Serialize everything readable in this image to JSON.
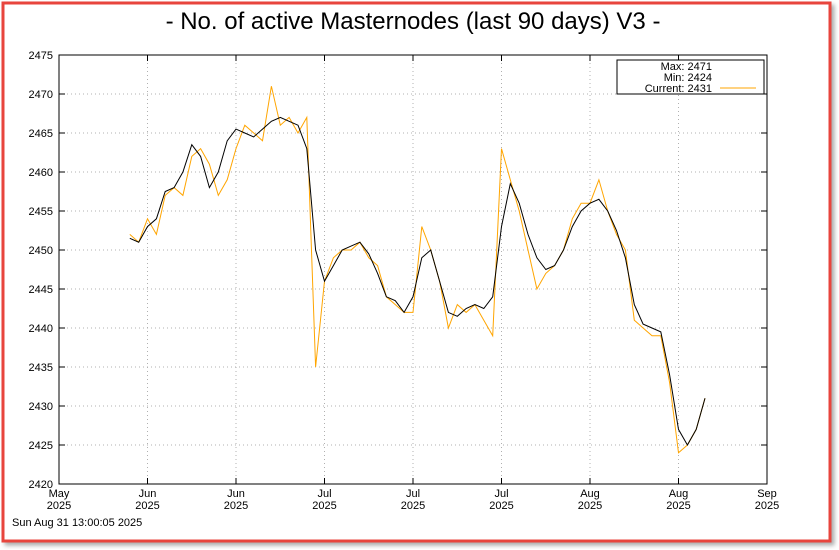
{
  "chart_data": {
    "type": "line",
    "title": "- No. of active Masternodes (last 90 days) V3 -",
    "footer": "Sun Aug 31 13:00:05 2025",
    "legend": [
      "Max: 2471",
      "Min: 2424",
      "Current: 2431"
    ],
    "legend_position": "upper right",
    "grid": true,
    "xlim": [
      0,
      80
    ],
    "xticks": [
      {
        "value": 0,
        "label": "May 2025"
      },
      {
        "value": 10,
        "label": "Jun 2025"
      },
      {
        "value": 20,
        "label": "Jun 2025"
      },
      {
        "value": 30,
        "label": "Jul 2025"
      },
      {
        "value": 40,
        "label": "Jul 2025"
      },
      {
        "value": 50,
        "label": "Jul 2025"
      },
      {
        "value": 60,
        "label": "Aug 2025"
      },
      {
        "value": 70,
        "label": "Aug 2025"
      },
      {
        "value": 80,
        "label": "Sep 2025"
      }
    ],
    "ylim": [
      2420,
      2475
    ],
    "yticks": [
      2420,
      2425,
      2430,
      2435,
      2440,
      2445,
      2450,
      2455,
      2460,
      2465,
      2470,
      2475
    ],
    "x": [
      8,
      9,
      10,
      11,
      12,
      13,
      14,
      15,
      16,
      17,
      18,
      19,
      20,
      21,
      22,
      23,
      24,
      25,
      26,
      27,
      28,
      29,
      30,
      31,
      32,
      33,
      34,
      35,
      36,
      37,
      38,
      39,
      40,
      41,
      42,
      43,
      44,
      45,
      46,
      47,
      48,
      49,
      50,
      51,
      52,
      53,
      54,
      55,
      56,
      57,
      58,
      59,
      60,
      61,
      62,
      63,
      64,
      65,
      66,
      67,
      68,
      69,
      70,
      71,
      72,
      73
    ],
    "series": [
      {
        "color": "#ffa500",
        "values": [
          2452,
          2451,
          2454,
          2452,
          2457,
          2458,
          2457,
          2462,
          2463,
          2461,
          2457,
          2459,
          2463,
          2466,
          2465,
          2464,
          2471,
          2466,
          2467,
          2465,
          2467,
          2435,
          2446,
          2449,
          2450,
          2450,
          2451,
          2449,
          2448,
          2444,
          2443,
          2442,
          2442,
          2453,
          2450,
          2446,
          2440,
          2443,
          2442,
          2443,
          2441,
          2439,
          2463,
          2459,
          2455,
          2450,
          2445,
          2447,
          2448,
          2450,
          2454,
          2456,
          2456,
          2459,
          2455,
          2452,
          2450,
          2441,
          2440,
          2439,
          2439,
          2433,
          2424,
          2425,
          2427,
          2431
        ]
      },
      {
        "color": "#000000",
        "values": [
          2451.5,
          2451,
          2453,
          2454,
          2457.5,
          2458,
          2460,
          2463.5,
          2462,
          2458,
          2460,
          2464,
          2465.5,
          2465,
          2464.5,
          2465.5,
          2466.5,
          2467,
          2466.5,
          2466,
          2463,
          2450,
          2446,
          2448,
          2450,
          2450.5,
          2451,
          2449.5,
          2447,
          2444,
          2443.5,
          2442,
          2444,
          2449,
          2450,
          2446,
          2442,
          2441.5,
          2442.5,
          2443,
          2442.5,
          2444,
          2453,
          2458.5,
          2456,
          2452,
          2449,
          2447.5,
          2448,
          2450,
          2453,
          2455,
          2456,
          2456.5,
          2455,
          2452.5,
          2449,
          2443,
          2440.5,
          2440,
          2439.5,
          2434,
          2427,
          2425,
          2427,
          2431
        ]
      }
    ]
  }
}
